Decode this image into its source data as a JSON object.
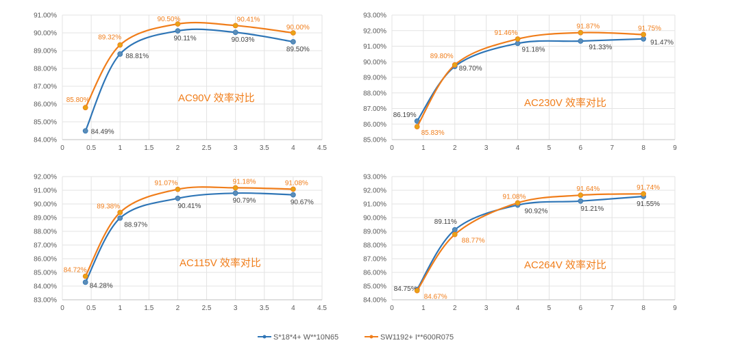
{
  "chart_data": [
    {
      "type": "line",
      "title": "AC90V 效率对比",
      "x": [
        0.4,
        1,
        2,
        3,
        4
      ],
      "xlim": [
        0,
        4.5
      ],
      "xticks": [
        0,
        0.5,
        1,
        1.5,
        2,
        2.5,
        3,
        3.5,
        4,
        4.5
      ],
      "ylim": [
        84,
        91
      ],
      "yticks": [
        84,
        85,
        86,
        87,
        88,
        89,
        90,
        91
      ],
      "series": [
        {
          "name": "S*18*4+ W**10N65",
          "values": [
            84.49,
            88.81,
            90.11,
            90.03,
            89.5
          ]
        },
        {
          "name": "SW1192+ I**600R075",
          "values": [
            85.8,
            89.32,
            90.5,
            90.41,
            90.0
          ]
        }
      ],
      "grid": true
    },
    {
      "type": "line",
      "title": "AC230V 效率对比",
      "x": [
        0.8,
        2,
        4,
        6,
        8
      ],
      "xlim": [
        0,
        9
      ],
      "xticks": [
        0,
        1,
        2,
        3,
        4,
        5,
        6,
        7,
        8,
        9
      ],
      "ylim": [
        85,
        93
      ],
      "yticks": [
        85,
        86,
        87,
        88,
        89,
        90,
        91,
        92,
        93
      ],
      "series": [
        {
          "name": "S*18*4+ W**10N65",
          "values": [
            86.19,
            89.7,
            91.18,
            91.33,
            91.47
          ]
        },
        {
          "name": "SW1192+ I**600R075",
          "values": [
            85.83,
            89.8,
            91.46,
            91.87,
            91.75
          ]
        }
      ],
      "grid": true
    },
    {
      "type": "line",
      "title": "AC115V 效率对比",
      "x": [
        0.4,
        1,
        2,
        3,
        4
      ],
      "xlim": [
        0,
        4.5
      ],
      "xticks": [
        0,
        0.5,
        1,
        1.5,
        2,
        2.5,
        3,
        3.5,
        4,
        4.5
      ],
      "ylim": [
        83,
        92
      ],
      "yticks": [
        83,
        84,
        85,
        86,
        87,
        88,
        89,
        90,
        91,
        92
      ],
      "series": [
        {
          "name": "S*18*4+ W**10N65",
          "values": [
            84.28,
            88.97,
            90.41,
            90.79,
            90.67
          ]
        },
        {
          "name": "SW1192+ I**600R075",
          "values": [
            84.72,
            89.38,
            91.07,
            91.18,
            91.08
          ]
        }
      ],
      "grid": true
    },
    {
      "type": "line",
      "title": "AC264V 效率对比",
      "x": [
        0.8,
        2,
        4,
        6,
        8
      ],
      "xlim": [
        0,
        9
      ],
      "xticks": [
        0,
        1,
        2,
        3,
        4,
        5,
        6,
        7,
        8,
        9
      ],
      "ylim": [
        84,
        93
      ],
      "yticks": [
        84,
        85,
        86,
        87,
        88,
        89,
        90,
        91,
        92,
        93
      ],
      "series": [
        {
          "name": "S*18*4+ W**10N65",
          "values": [
            84.75,
            89.11,
            90.92,
            91.21,
            91.55
          ]
        },
        {
          "name": "SW1192+ I**600R075",
          "values": [
            84.67,
            88.77,
            91.08,
            91.64,
            91.74
          ]
        }
      ],
      "grid": true
    }
  ],
  "legend": {
    "placement": "bottom",
    "items": [
      "S*18*4+ W**10N65",
      "SW1192+ I**600R075"
    ]
  },
  "colors": {
    "series": [
      "#2e75b6",
      "#f07d1a"
    ],
    "marker_blue": "#5b8db8",
    "marker_orange": "#e8a317",
    "grid": "#e3e3e3"
  }
}
